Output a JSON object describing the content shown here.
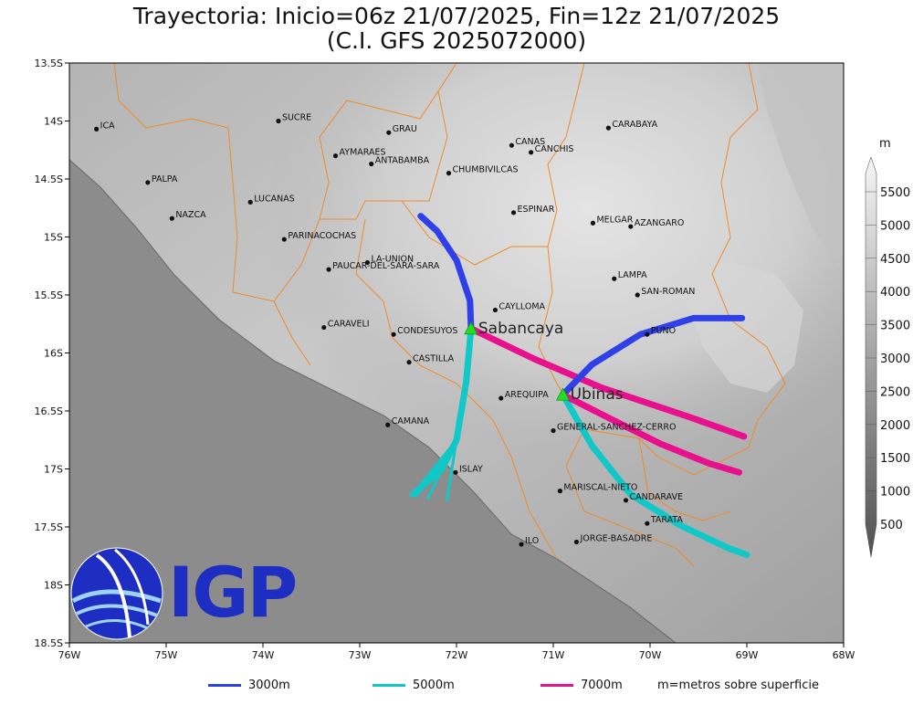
{
  "title": {
    "line1": "Trayectoria: Inicio=06z 21/07/2025, Fin=12z 21/07/2025",
    "line2": "(C.I. GFS 2025072000)"
  },
  "axes": {
    "lon_min": -76,
    "lon_max": -68,
    "lat_min": -18.5,
    "lat_max": -13.5,
    "x_ticks": [
      {
        "lon": -76,
        "label": "76W"
      },
      {
        "lon": -75,
        "label": "75W"
      },
      {
        "lon": -74,
        "label": "74W"
      },
      {
        "lon": -73,
        "label": "73W"
      },
      {
        "lon": -72,
        "label": "72W"
      },
      {
        "lon": -71,
        "label": "71W"
      },
      {
        "lon": -70,
        "label": "70W"
      },
      {
        "lon": -69,
        "label": "69W"
      },
      {
        "lon": -68,
        "label": "68W"
      }
    ],
    "y_ticks": [
      {
        "lat": -13.5,
        "label": "13.5S"
      },
      {
        "lat": -14,
        "label": "14S"
      },
      {
        "lat": -14.5,
        "label": "14.5S"
      },
      {
        "lat": -15,
        "label": "15S"
      },
      {
        "lat": -15.5,
        "label": "15.5S"
      },
      {
        "lat": -16,
        "label": "16S"
      },
      {
        "lat": -16.5,
        "label": "16.5S"
      },
      {
        "lat": -17,
        "label": "17S"
      },
      {
        "lat": -17.5,
        "label": "17.5S"
      },
      {
        "lat": -18,
        "label": "18S"
      },
      {
        "lat": -18.5,
        "label": "18.5S"
      }
    ]
  },
  "cities": [
    {
      "name": "ICA",
      "lon": -75.72,
      "lat": -14.07
    },
    {
      "name": "SUCRE",
      "lon": -73.84,
      "lat": -14.0
    },
    {
      "name": "GRAU",
      "lon": -72.7,
      "lat": -14.1
    },
    {
      "name": "AYMARAES",
      "lon": -73.25,
      "lat": -14.3
    },
    {
      "name": "ANTABAMBA",
      "lon": -72.88,
      "lat": -14.37
    },
    {
      "name": "CANAS",
      "lon": -71.43,
      "lat": -14.21
    },
    {
      "name": "CANCHIS",
      "lon": -71.23,
      "lat": -14.27
    },
    {
      "name": "CHUMBIVILCAS",
      "lon": -72.08,
      "lat": -14.45
    },
    {
      "name": "CARABAYA",
      "lon": -70.43,
      "lat": -14.06
    },
    {
      "name": "PALPA",
      "lon": -75.19,
      "lat": -14.53
    },
    {
      "name": "LUCANAS",
      "lon": -74.13,
      "lat": -14.7
    },
    {
      "name": "NAZCA",
      "lon": -74.94,
      "lat": -14.84
    },
    {
      "name": "ESPINAR",
      "lon": -71.41,
      "lat": -14.79
    },
    {
      "name": "MELGAR",
      "lon": -70.59,
      "lat": -14.88
    },
    {
      "name": "AZANGARO",
      "lon": -70.2,
      "lat": -14.91
    },
    {
      "name": "PARINACOCHAS",
      "lon": -73.78,
      "lat": -15.02
    },
    {
      "name": "LA-UNION",
      "lon": -72.92,
      "lat": -15.22
    },
    {
      "name": "PAUCAR-DEL-SARA-SARA",
      "lon": -73.32,
      "lat": -15.28
    },
    {
      "name": "LAMPA",
      "lon": -70.37,
      "lat": -15.36
    },
    {
      "name": "SAN-ROMAN",
      "lon": -70.13,
      "lat": -15.5
    },
    {
      "name": "CAYLLOMA",
      "lon": -71.6,
      "lat": -15.63
    },
    {
      "name": "CARAVELI",
      "lon": -73.37,
      "lat": -15.78
    },
    {
      "name": "CONDESUYOS",
      "lon": -72.65,
      "lat": -15.84
    },
    {
      "name": "PUNO",
      "lon": -70.03,
      "lat": -15.84
    },
    {
      "name": "CASTILLA",
      "lon": -72.49,
      "lat": -16.08
    },
    {
      "name": "AREQUIPA",
      "lon": -71.54,
      "lat": -16.39
    },
    {
      "name": "CAMANA",
      "lon": -72.71,
      "lat": -16.62
    },
    {
      "name": "GENERAL-SANCHEZ-CERRO",
      "lon": -71.0,
      "lat": -16.67
    },
    {
      "name": "ISLAY",
      "lon": -72.01,
      "lat": -17.03
    },
    {
      "name": "MARISCAL-NIETO",
      "lon": -70.93,
      "lat": -17.19
    },
    {
      "name": "CANDARAVE",
      "lon": -70.25,
      "lat": -17.27
    },
    {
      "name": "TARATA",
      "lon": -70.03,
      "lat": -17.47
    },
    {
      "name": "ILO",
      "lon": -71.33,
      "lat": -17.65
    },
    {
      "name": "JORGE-BASADRE",
      "lon": -70.76,
      "lat": -17.63
    }
  ],
  "volcanoes": [
    {
      "name": "Sabancaya",
      "lon": -71.85,
      "lat": -15.79
    },
    {
      "name": "Ubinas",
      "lon": -70.9,
      "lat": -16.36
    }
  ],
  "series": [
    {
      "name": "3000m",
      "color": "#3040e8"
    },
    {
      "name": "5000m",
      "color": "#10c8c8"
    },
    {
      "name": "7000m",
      "color": "#e8108c"
    }
  ],
  "trajectories": [
    {
      "volcano": "Sabancaya",
      "level": "3000m",
      "path": [
        [
          -71.85,
          -15.79
        ],
        [
          -71.86,
          -15.55
        ],
        [
          -72.0,
          -15.2
        ],
        [
          -72.2,
          -14.95
        ],
        [
          -72.37,
          -14.82
        ]
      ]
    },
    {
      "volcano": "Sabancaya",
      "level": "5000m",
      "path": [
        [
          -71.85,
          -15.79
        ],
        [
          -71.9,
          -16.25
        ],
        [
          -72.0,
          -16.75
        ],
        [
          -72.15,
          -17.0
        ],
        [
          -72.45,
          -17.22
        ]
      ],
      "fan_end": [
        [
          -72.45,
          -17.22
        ],
        [
          -72.42,
          -17.24
        ],
        [
          -72.3,
          -17.26
        ],
        [
          -72.1,
          -17.28
        ]
      ]
    },
    {
      "volcano": "Sabancaya",
      "level": "7000m",
      "path": [
        [
          -71.85,
          -15.79
        ],
        [
          -71.2,
          -16.05
        ],
        [
          -70.5,
          -16.3
        ],
        [
          -69.6,
          -16.55
        ],
        [
          -69.03,
          -16.72
        ]
      ]
    },
    {
      "volcano": "Ubinas",
      "level": "3000m",
      "path": [
        [
          -70.9,
          -16.36
        ],
        [
          -70.6,
          -16.1
        ],
        [
          -70.1,
          -15.84
        ],
        [
          -69.55,
          -15.7
        ],
        [
          -69.05,
          -15.7
        ]
      ]
    },
    {
      "volcano": "Ubinas",
      "level": "5000m",
      "path": [
        [
          -70.9,
          -16.36
        ],
        [
          -70.6,
          -16.8
        ],
        [
          -70.2,
          -17.22
        ],
        [
          -69.7,
          -17.48
        ],
        [
          -69.2,
          -17.68
        ],
        [
          -69.0,
          -17.74
        ]
      ]
    },
    {
      "volcano": "Ubinas",
      "level": "7000m",
      "path": [
        [
          -70.9,
          -16.36
        ],
        [
          -70.45,
          -16.55
        ],
        [
          -69.9,
          -16.78
        ],
        [
          -69.4,
          -16.95
        ],
        [
          -69.08,
          -17.03
        ]
      ]
    }
  ],
  "colorbar": {
    "unit": "m",
    "levels": [
      "500",
      "1000",
      "1500",
      "2000",
      "2500",
      "3000",
      "3500",
      "4000",
      "4500",
      "5000",
      "5500"
    ]
  },
  "legend": {
    "items": [
      "3000m",
      "5000m",
      "7000m"
    ],
    "note": "m=metros sobre superficie"
  },
  "logo": {
    "text": "IGP",
    "color": "#1f2ec2"
  }
}
